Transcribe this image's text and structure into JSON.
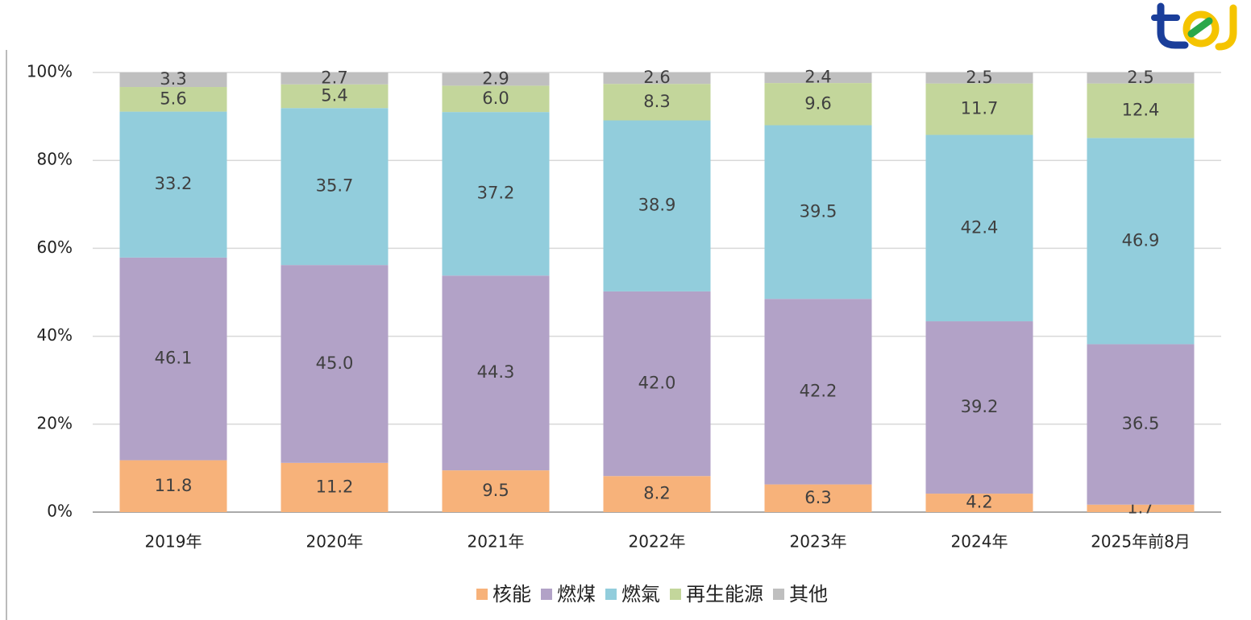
{
  "chart_data": {
    "type": "stacked_bar",
    "categories": [
      "2019年",
      "2020年",
      "2021年",
      "2022年",
      "2023年",
      "2024年",
      "2025年前8月"
    ],
    "series": [
      {
        "name": "核能",
        "color": "#f7b27a",
        "values": [
          11.8,
          11.2,
          9.5,
          8.2,
          6.3,
          4.2,
          1.7
        ]
      },
      {
        "name": "燃煤",
        "color": "#b2a2c7",
        "values": [
          46.1,
          45.0,
          44.3,
          42.0,
          42.2,
          39.2,
          36.5
        ],
        "value_labels": [
          "46.1",
          "45.0",
          "44.3",
          "42.0",
          "42.2",
          "39.2",
          "36.5"
        ]
      },
      {
        "name": "燃氣",
        "color": "#92cddc",
        "values": [
          33.2,
          35.7,
          37.2,
          38.9,
          39.5,
          42.4,
          46.9
        ]
      },
      {
        "name": "再生能源",
        "color": "#c3d69b",
        "values": [
          5.6,
          5.4,
          6.0,
          8.3,
          9.6,
          11.7,
          12.4
        ],
        "value_labels": [
          "5.6",
          "5.4",
          "6.0",
          "8.3",
          "9.6",
          "11.7",
          "12.4"
        ]
      },
      {
        "name": "其他",
        "color": "#bfbfbf",
        "values": [
          3.3,
          2.7,
          2.9,
          2.6,
          2.4,
          2.5,
          2.5
        ]
      }
    ],
    "ylim": [
      0,
      100
    ],
    "yticks": [
      {
        "value": 0,
        "label": "0%"
      },
      {
        "value": 20,
        "label": "20%"
      },
      {
        "value": 40,
        "label": "40%"
      },
      {
        "value": 60,
        "label": "60%"
      },
      {
        "value": 80,
        "label": "80%"
      },
      {
        "value": 100,
        "label": "100%"
      }
    ],
    "grid": true,
    "legend": "bottom"
  }
}
